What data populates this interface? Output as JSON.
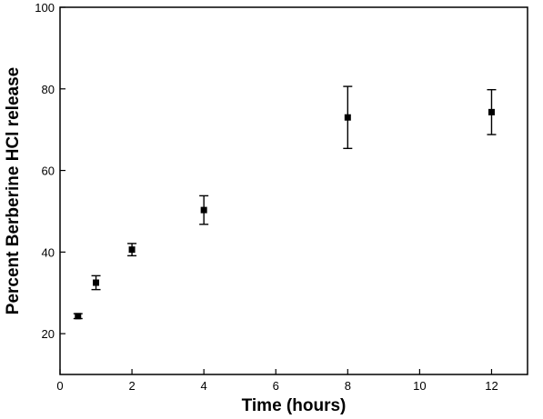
{
  "chart_data": {
    "type": "scatter",
    "xlabel": "Time (hours)",
    "ylabel": "Percent Berberine HCl release",
    "xlim": [
      0,
      13
    ],
    "ylim": [
      10,
      100
    ],
    "xticks": [
      0,
      2,
      4,
      6,
      8,
      10,
      12
    ],
    "yticks": [
      20,
      40,
      60,
      80,
      100
    ],
    "grid": false,
    "legend": "none",
    "marker": "square",
    "color": "#000000",
    "points": [
      {
        "x": 0.5,
        "y": 24.3,
        "err": 0.6
      },
      {
        "x": 1,
        "y": 32.5,
        "err": 1.7
      },
      {
        "x": 2,
        "y": 40.6,
        "err": 1.5
      },
      {
        "x": 4,
        "y": 50.3,
        "err": 3.5
      },
      {
        "x": 8,
        "y": 73.0,
        "err": 7.6
      },
      {
        "x": 12,
        "y": 74.3,
        "err": 5.5
      }
    ]
  }
}
